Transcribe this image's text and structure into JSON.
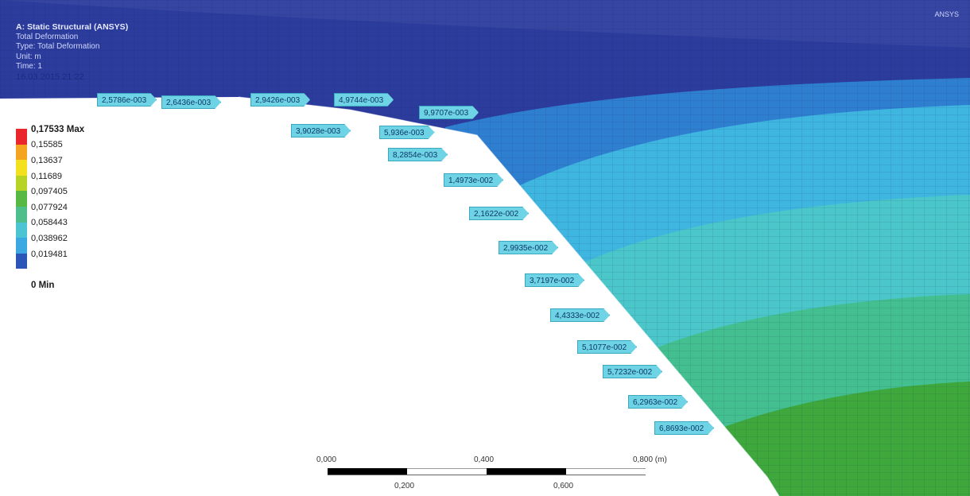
{
  "header": {
    "title": "A: Static Structural (ANSYS)",
    "lines": [
      "Total Deformation",
      "Type: Total Deformation",
      "Unit: m",
      "Time: 1"
    ],
    "datetime": "16.03.2015 21:22",
    "corner_tag": "ANSYS"
  },
  "legend": {
    "entries": [
      {
        "label": "0,17533 Max",
        "color": "#e8262b",
        "bold": true
      },
      {
        "label": "0,15585",
        "color": "#f4a41f",
        "bold": false
      },
      {
        "label": "0,13637",
        "color": "#f2e11c",
        "bold": false
      },
      {
        "label": "0,11689",
        "color": "#b7d324",
        "bold": false
      },
      {
        "label": "0,097405",
        "color": "#57b944",
        "bold": false
      },
      {
        "label": "0,077924",
        "color": "#4ebf8a",
        "bold": false
      },
      {
        "label": "0,058443",
        "color": "#4cc4d2",
        "bold": false
      },
      {
        "label": "0,038962",
        "color": "#3ba8e2",
        "bold": false
      },
      {
        "label": "0,019481",
        "color": "#2b55b6",
        "bold": false
      }
    ],
    "min_label": "0 Min"
  },
  "probes": [
    "2,5786e-003",
    "2,6436e-003",
    "2,9426e-003",
    "4,9744e-003",
    "9,9707e-003",
    "3,9028e-003",
    "5,936e-003",
    "8,2854e-003",
    "1,4973e-002",
    "2,1622e-002",
    "2,9935e-002",
    "3,7197e-002",
    "4,4333e-002",
    "5,1077e-002",
    "5,7232e-002",
    "6,2963e-002",
    "6,8693e-002"
  ],
  "scale": {
    "top_labels": [
      "0,000",
      "0,400",
      "0,800 (m)"
    ],
    "bottom_labels": [
      "0,200",
      "0,600"
    ]
  },
  "colors": {
    "band_dark_blue": "#2c3c9c",
    "band_mid_blue": "#2f7fd1",
    "band_light_blue": "#3fb6e0",
    "band_cyan": "#4bc6c9",
    "band_teal": "#43bf90",
    "band_green": "#3ea83d",
    "probe_fill": "#6fd3e6"
  }
}
